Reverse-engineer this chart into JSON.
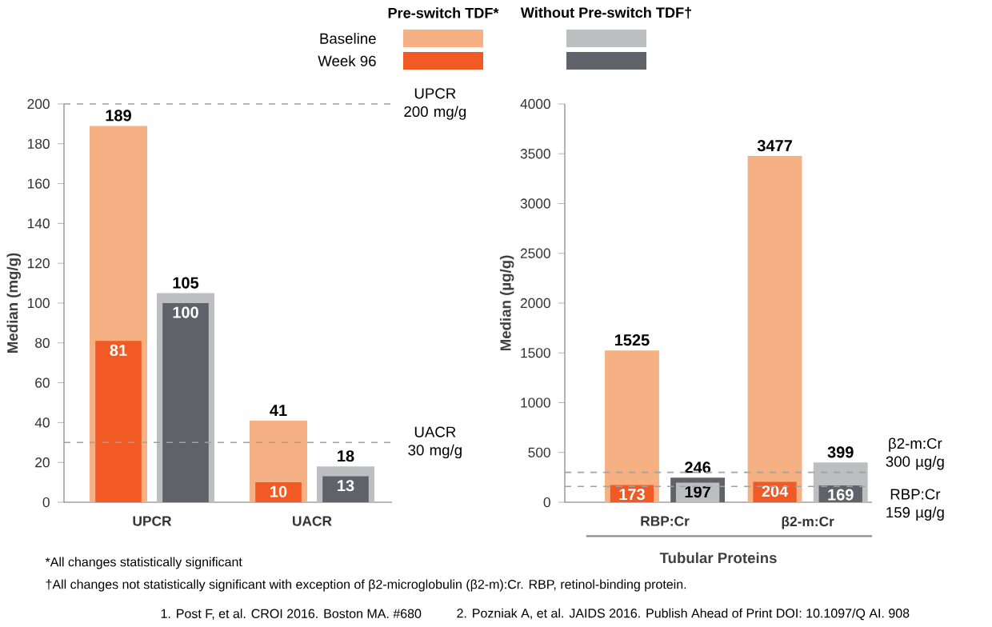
{
  "chart_data": [
    {
      "type": "bar",
      "categories": [
        "UPCR",
        "UACR"
      ],
      "ylabel": "Median (mg/g)",
      "ylim": [
        0,
        200
      ],
      "yticks": [
        0,
        20,
        40,
        60,
        80,
        100,
        120,
        140,
        160,
        180,
        200
      ],
      "legend": "top",
      "data_labels": true,
      "series": [
        {
          "name": "Baseline",
          "color": "#f5b183",
          "values": [
            189,
            41
          ]
        },
        {
          "name": "Week 96",
          "color": "#f15a24",
          "values": [
            81,
            10
          ]
        },
        {
          "color": "#bdbec0",
          "values": [
            105,
            18
          ]
        },
        {
          "color": "#5f6369",
          "values": [
            100,
            13
          ]
        }
      ],
      "ref_lines": [
        {
          "axis": "y",
          "value": 200,
          "label": "UPCR 200 mg/g",
          "color": "#a0a0a0",
          "line_style": "dashed"
        },
        {
          "axis": "y",
          "value": 30,
          "label": "UACR 30 mg/g",
          "color": "#a0a0a0",
          "line_style": "dashed"
        }
      ],
      "annotations": [
        "Pre-switch TDF*",
        "Without Pre-switch TDF†",
        "*All changes statistically significant",
        "†All changes not statistically significant with exception of β2-microglobulin (β2-m):Cr. RBP, retinol-binding protein.",
        "1. Post F, et al. CROI 2016. Boston MA. #680",
        "2. Pozniak A, et al. JAIDS 2016. Publish Ahead of Print DOI: 10.1097/Q AI. 908"
      ]
    },
    {
      "type": "bar",
      "categories": [
        "RBP:Cr",
        "β2-m:Cr"
      ],
      "xlabel": "Tubular Proteins",
      "ylabel": "Median (µg/g)",
      "ylim": [
        0,
        4000
      ],
      "yticks": [
        0,
        500,
        1000,
        1500,
        2000,
        2500,
        3000,
        3500,
        4000
      ],
      "data_labels": true,
      "series": [
        {
          "color": "#f5b183",
          "values": [
            1525,
            3477
          ]
        },
        {
          "color": "#f15a24",
          "values": [
            173,
            204
          ]
        },
        {
          "color": "#bdbec0",
          "values": [
            197,
            399
          ]
        },
        {
          "color": "#5f6369",
          "values": [
            246,
            169
          ]
        }
      ],
      "ref_lines": [
        {
          "axis": "y",
          "value": 300,
          "label": "β2-m:Cr 300 µg/g",
          "color": "#a0a0a0",
          "line_style": "dashed"
        },
        {
          "axis": "y",
          "value": 159,
          "label": "RBP:Cr 159 µg/g",
          "color": "#a0a0a0",
          "line_style": "dashed"
        }
      ]
    }
  ]
}
